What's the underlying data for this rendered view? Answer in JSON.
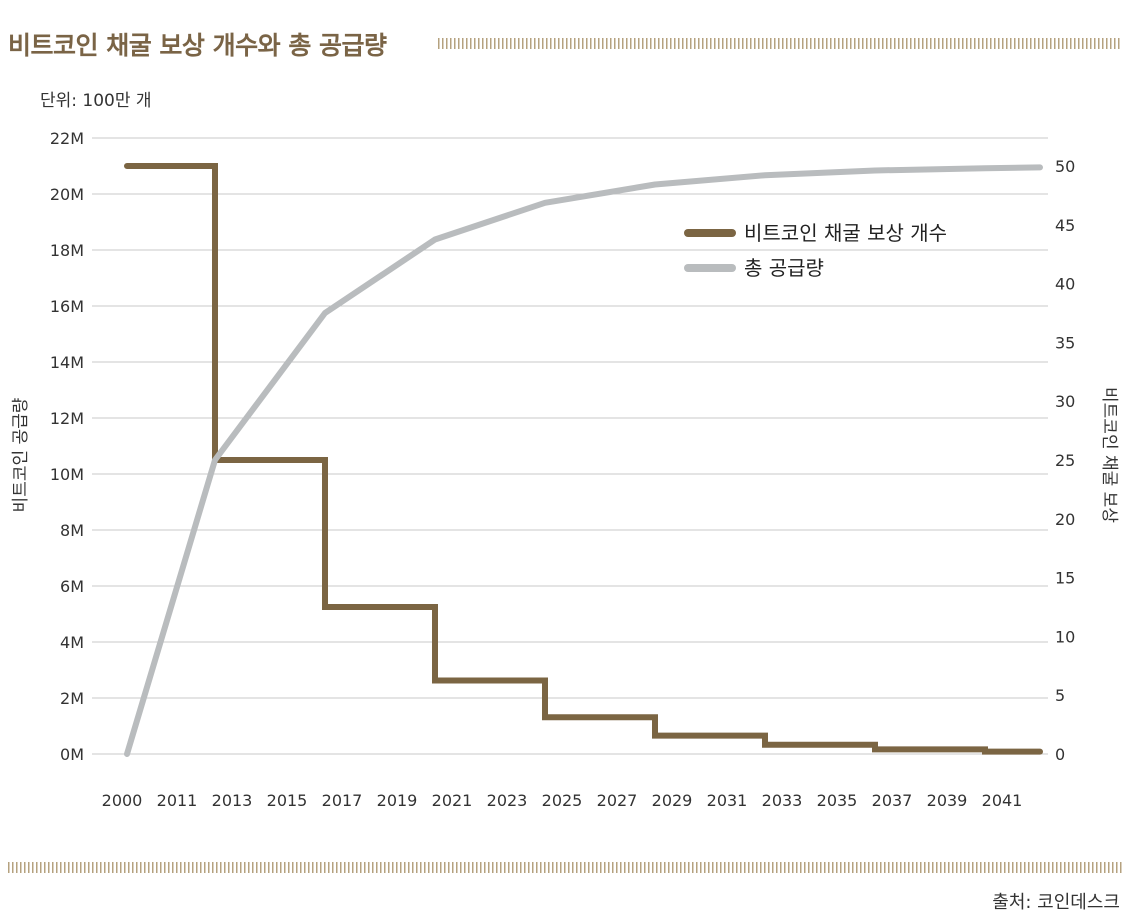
{
  "header": {
    "title": "비트코인 채굴 보상 개수와 총 공급량",
    "unit_label": "단위: 100만 개"
  },
  "footer": {
    "source": "출처: 코인데스크"
  },
  "colors": {
    "reward": "#7b6543",
    "supply": "#b9bcbe",
    "grid": "#c8c8c8",
    "title": "#7a6446"
  },
  "chart_data": {
    "type": "line",
    "x_tick_labels": [
      "2000",
      "2011",
      "2013",
      "2015",
      "2017",
      "2019",
      "2021",
      "2023",
      "2025",
      "2027",
      "2029",
      "2031",
      "2033",
      "2035",
      "2037",
      "2039",
      "2041"
    ],
    "ylabel_left": "비트코인 공급량",
    "ylabel_right": "비트코인 채굴 보상",
    "y_left_ticks": [
      "0M",
      "2M",
      "4M",
      "6M",
      "8M",
      "10M",
      "12M",
      "14M",
      "16M",
      "18M",
      "20M",
      "22M"
    ],
    "y_left_range": [
      0,
      22
    ],
    "y_right_ticks": [
      "0",
      "5",
      "10",
      "15",
      "20",
      "25",
      "30",
      "35",
      "40",
      "45",
      "50"
    ],
    "y_right_range": [
      0,
      50
    ],
    "grid": "horizontal",
    "legend_position": "top-right",
    "series": [
      {
        "name": "비트코인 채굴 보상 개수",
        "axis": "right",
        "style": "step",
        "points": [
          [
            0,
            50
          ],
          [
            1.6,
            50
          ],
          [
            1.6,
            25
          ],
          [
            3.6,
            25
          ],
          [
            3.6,
            12.5
          ],
          [
            5.6,
            12.5
          ],
          [
            5.6,
            6.25
          ],
          [
            7.6,
            6.25
          ],
          [
            7.6,
            3.125
          ],
          [
            9.6,
            3.125
          ],
          [
            9.6,
            1.5625
          ],
          [
            11.6,
            1.5625
          ],
          [
            11.6,
            0.78
          ],
          [
            13.6,
            0.78
          ],
          [
            13.6,
            0.39
          ],
          [
            15.6,
            0.39
          ],
          [
            15.6,
            0.2
          ],
          [
            16.6,
            0.2
          ]
        ]
      },
      {
        "name": "총 공급량",
        "axis": "left",
        "style": "line",
        "points": [
          [
            0,
            0
          ],
          [
            1.6,
            10.5
          ],
          [
            3.6,
            15.75
          ],
          [
            5.6,
            18.375
          ],
          [
            7.6,
            19.6875
          ],
          [
            9.6,
            20.34
          ],
          [
            11.6,
            20.67
          ],
          [
            13.6,
            20.84
          ],
          [
            15.6,
            20.92
          ],
          [
            16.6,
            20.95
          ]
        ]
      }
    ]
  }
}
